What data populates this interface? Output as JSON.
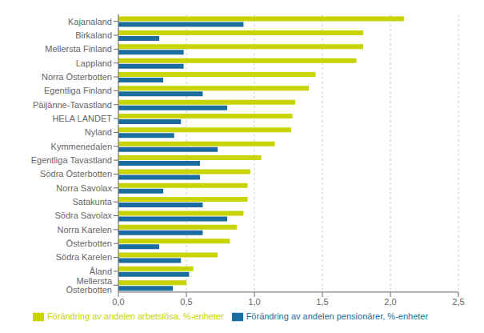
{
  "chart_data": {
    "type": "bar",
    "orientation": "horizontal",
    "categories": [
      "Kajanaland",
      "Birkaland",
      "Mellersta Finland",
      "Lappland",
      "Norra Österbotten",
      "Egentliga Finland",
      "Päijänne-Tavastland",
      "HELA LANDET",
      "Nyland",
      "Kymmenedalen",
      "Egentliga Tavastland",
      "Södra Österbotten",
      "Norra Savolax",
      "Satakunta",
      "Södra Savolax",
      "Norra Karelen",
      "Österbotten",
      "Södra Karelen",
      "Åland",
      "Mellersta Österbotten"
    ],
    "series": [
      {
        "name": "Förändring av andelen arbetslösa, %-enheter",
        "color": "#c8d400",
        "values": [
          2.1,
          1.8,
          1.8,
          1.75,
          1.45,
          1.4,
          1.3,
          1.28,
          1.27,
          1.15,
          1.05,
          0.97,
          0.95,
          0.95,
          0.92,
          0.87,
          0.82,
          0.73,
          0.55,
          0.5
        ]
      },
      {
        "name": "Förändring av andelen pensionärer, %-enheter",
        "color": "#1a6d9e",
        "values": [
          0.92,
          0.3,
          0.48,
          0.48,
          0.33,
          0.62,
          0.8,
          0.46,
          0.41,
          0.73,
          0.6,
          0.6,
          0.33,
          0.62,
          0.8,
          0.62,
          0.3,
          0.46,
          0.52,
          0.4
        ]
      }
    ],
    "xlim": [
      0,
      2.5
    ],
    "xticks": [
      {
        "value": 0.0,
        "label": "0,0"
      },
      {
        "value": 0.5,
        "label": "0,5"
      },
      {
        "value": 1.0,
        "label": "1,0"
      },
      {
        "value": 1.5,
        "label": "1,5"
      },
      {
        "value": 2.0,
        "label": "2,0"
      },
      {
        "value": 2.5,
        "label": "2,5"
      }
    ],
    "grid": true,
    "legend": "bottom"
  }
}
